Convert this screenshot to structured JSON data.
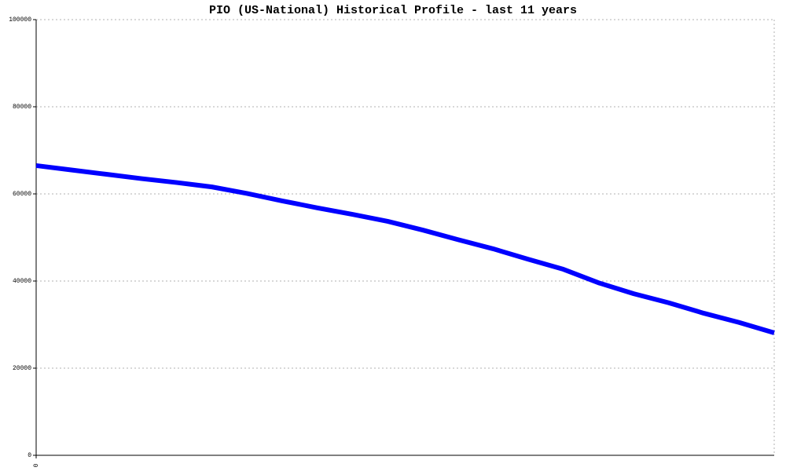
{
  "chart_data": {
    "type": "line",
    "title": "PIO (US-National) Historical Profile - last 11 years",
    "categories": [
      "0",
      null,
      null,
      null,
      null,
      null,
      null,
      null,
      null,
      null,
      null,
      null,
      null,
      null,
      null,
      null,
      null,
      null,
      null,
      null,
      null,
      null
    ],
    "series": [
      {
        "name": "PIO",
        "color": "#0000ff",
        "values": [
          66500,
          65500,
          64500,
          63500,
          62600,
          61600,
          60100,
          58400,
          56800,
          55300,
          53700,
          51700,
          49500,
          47400,
          45000,
          42700,
          39600,
          37100,
          35000,
          32600,
          30500,
          28100
        ]
      }
    ],
    "ylim": [
      0,
      100000
    ],
    "yticks": [
      0,
      20000,
      40000,
      60000,
      80000,
      100000
    ],
    "grid": true
  }
}
